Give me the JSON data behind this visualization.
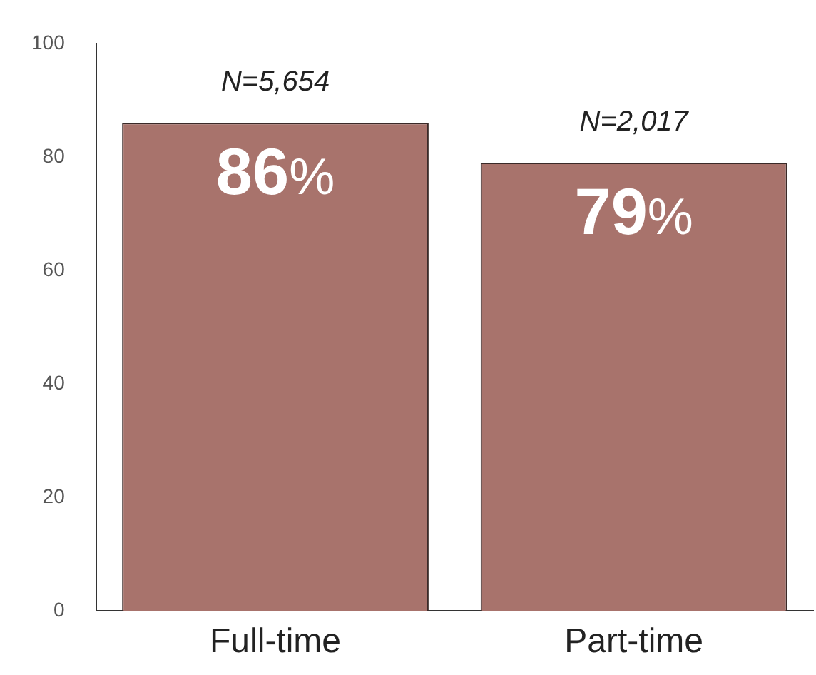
{
  "chart_data": {
    "type": "bar",
    "categories": [
      "Full-time",
      "Part-time"
    ],
    "values": [
      86,
      79
    ],
    "color": "#a8736c",
    "value_labels": [
      "86%",
      "79%"
    ],
    "annotations": [
      {
        "text": "N=5,654",
        "x": "Full-time",
        "y": 86
      },
      {
        "text": "N=2,017",
        "x": "Part-time",
        "y": 79
      }
    ],
    "ylim": [
      0,
      100
    ],
    "yticks": [
      0,
      20,
      40,
      60,
      80,
      100
    ],
    "grid": false,
    "legend": false
  }
}
